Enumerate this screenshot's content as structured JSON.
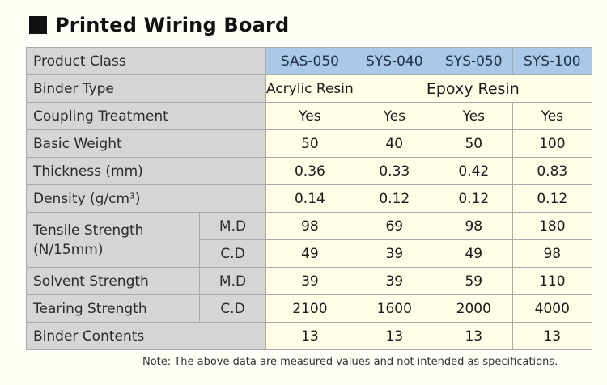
{
  "title": "Printed Wiring Board",
  "note": "Note: The above data are measured values and not intended as specifications.",
  "header": {
    "label": "Product Class",
    "products": [
      "SAS-050",
      "SYS-040",
      "SYS-050",
      "SYS-100"
    ]
  },
  "binder_type": {
    "label": "Binder Type",
    "sas": "Acrylic Resin",
    "sys": "Epoxy Resin"
  },
  "rows": {
    "coupling": {
      "label": "Coupling Treatment",
      "values": [
        "Yes",
        "Yes",
        "Yes",
        "Yes"
      ]
    },
    "basic_weight": {
      "label": "Basic Weight",
      "values": [
        "50",
        "40",
        "50",
        "100"
      ]
    },
    "thickness": {
      "label": "Thickness (mm)",
      "values": [
        "0.36",
        "0.33",
        "0.42",
        "0.83"
      ]
    },
    "density": {
      "label": "Density (g/cm³)",
      "values": [
        "0.14",
        "0.12",
        "0.12",
        "0.12"
      ]
    },
    "tensile": {
      "label_line1": "Tensile Strength",
      "label_line2": "(N/15mm)",
      "md": {
        "label": "M.D",
        "values": [
          "98",
          "69",
          "98",
          "180"
        ]
      },
      "cd": {
        "label": "C.D",
        "values": [
          "49",
          "39",
          "49",
          "98"
        ]
      }
    },
    "solvent": {
      "label": "Solvent Strength",
      "sub": "M.D",
      "values": [
        "39",
        "39",
        "59",
        "110"
      ]
    },
    "tearing": {
      "label": "Tearing Strength",
      "sub": "C.D",
      "values": [
        "2100",
        "1600",
        "2000",
        "4000"
      ]
    },
    "binder_contents": {
      "label": "Binder Contents",
      "values": [
        "13",
        "13",
        "13",
        "13"
      ]
    }
  }
}
